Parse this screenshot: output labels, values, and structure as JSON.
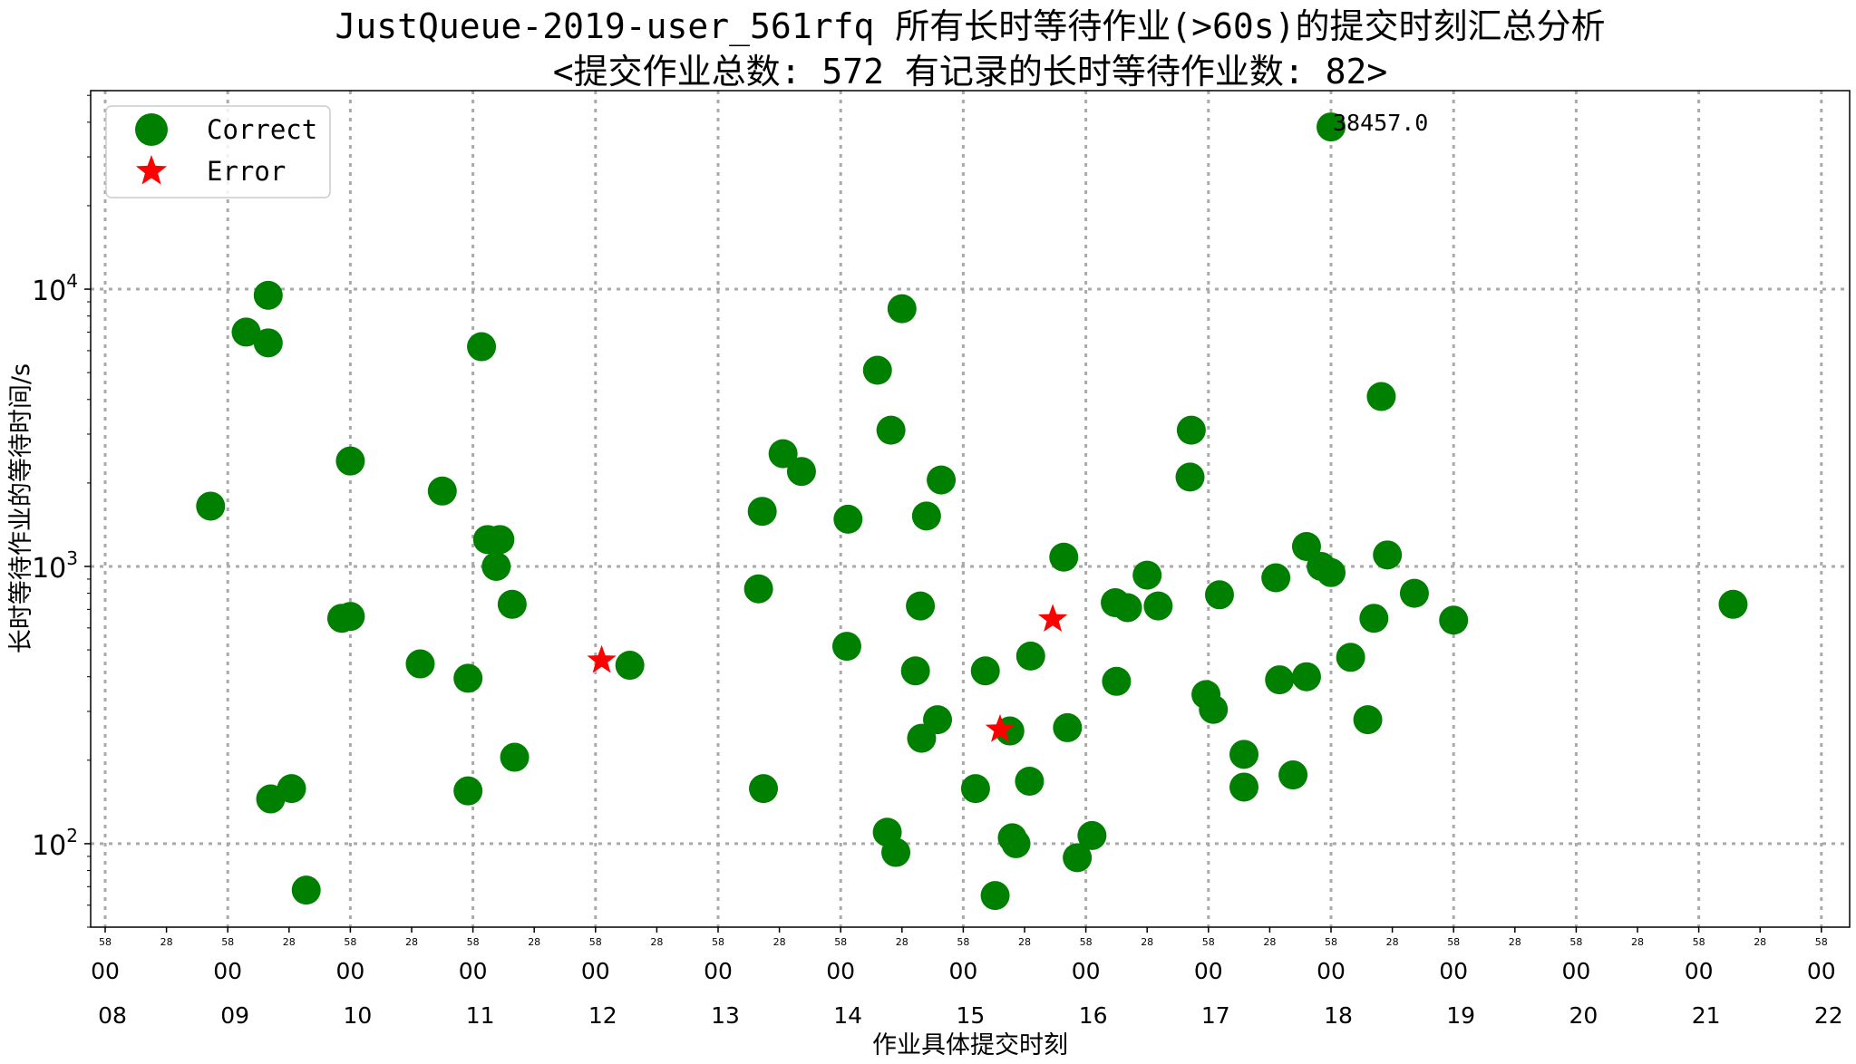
{
  "chart_data": {
    "type": "scatter",
    "title": "JustQueue-2019-user_561rfq 所有长时等待作业(>60s)的提交时刻汇总分析",
    "subtitle": "<提交作业总数: 572  有记录的长时等待作业数: 82>",
    "xlabel": "作业具体提交时刻",
    "ylabel": "长时等待作业的等待时间/s",
    "y_scale": "log",
    "ylim": [
      50,
      52000
    ],
    "xlim_hours": [
      7.97,
      22.3
    ],
    "grid": true,
    "legend_position": "top-left",
    "y_ticks": [
      {
        "value": 100,
        "base": "10",
        "exp": "2"
      },
      {
        "value": 1000,
        "base": "10",
        "exp": "3"
      },
      {
        "value": 10000,
        "base": "10",
        "exp": "4"
      }
    ],
    "x_ticks_major": [
      {
        "hour": "08",
        "value": 8.0
      },
      {
        "hour": "09",
        "value": 9.0
      },
      {
        "hour": "10",
        "value": 10.0
      },
      {
        "hour": "11",
        "value": 11.0
      },
      {
        "hour": "12",
        "value": 12.0
      },
      {
        "hour": "13",
        "value": 13.0
      },
      {
        "hour": "14",
        "value": 14.0
      },
      {
        "hour": "15",
        "value": 15.0
      },
      {
        "hour": "16",
        "value": 16.0
      },
      {
        "hour": "17",
        "value": 17.0
      },
      {
        "hour": "18",
        "value": 18.0
      },
      {
        "hour": "19",
        "value": 19.0
      },
      {
        "hour": "20",
        "value": 20.0
      },
      {
        "hour": "21",
        "value": 21.0
      },
      {
        "hour": "22",
        "value": 22.0
      }
    ],
    "x_tick_mid_label": "00",
    "x_tick_small_a": "58",
    "x_tick_small_b": "28",
    "series": [
      {
        "name": "Correct",
        "marker": "circle",
        "color": "#008000",
        "points": [
          [
            8.86,
            1650
          ],
          [
            9.15,
            7000
          ],
          [
            9.33,
            9500
          ],
          [
            9.33,
            6400
          ],
          [
            9.35,
            145
          ],
          [
            9.52,
            158
          ],
          [
            9.64,
            68
          ],
          [
            9.93,
            650
          ],
          [
            10.0,
            660
          ],
          [
            10.0,
            2400
          ],
          [
            10.57,
            445
          ],
          [
            10.75,
            1870
          ],
          [
            10.96,
            395
          ],
          [
            10.96,
            155
          ],
          [
            11.07,
            6200
          ],
          [
            11.12,
            1250
          ],
          [
            11.19,
            1000
          ],
          [
            11.22,
            1250
          ],
          [
            11.32,
            730
          ],
          [
            11.34,
            205
          ],
          [
            12.28,
            440
          ],
          [
            13.33,
            830
          ],
          [
            13.36,
            1580
          ],
          [
            13.37,
            158
          ],
          [
            13.53,
            2550
          ],
          [
            13.68,
            2200
          ],
          [
            14.05,
            515
          ],
          [
            14.06,
            1480
          ],
          [
            14.3,
            5100
          ],
          [
            14.38,
            110
          ],
          [
            14.41,
            3100
          ],
          [
            14.45,
            93
          ],
          [
            14.5,
            8500
          ],
          [
            14.61,
            420
          ],
          [
            14.65,
            720
          ],
          [
            14.66,
            240
          ],
          [
            14.7,
            1520
          ],
          [
            14.79,
            280
          ],
          [
            14.82,
            2050
          ],
          [
            15.1,
            158
          ],
          [
            15.18,
            420
          ],
          [
            15.26,
            65
          ],
          [
            15.38,
            255
          ],
          [
            15.4,
            105
          ],
          [
            15.43,
            100
          ],
          [
            15.54,
            168
          ],
          [
            15.55,
            475
          ],
          [
            15.82,
            1080
          ],
          [
            15.85,
            262
          ],
          [
            15.93,
            89
          ],
          [
            16.05,
            107
          ],
          [
            16.24,
            740
          ],
          [
            16.25,
            385
          ],
          [
            16.34,
            710
          ],
          [
            16.5,
            930
          ],
          [
            16.59,
            720
          ],
          [
            16.85,
            2100
          ],
          [
            16.86,
            3100
          ],
          [
            16.98,
            345
          ],
          [
            17.04,
            305
          ],
          [
            17.09,
            790
          ],
          [
            17.29,
            210
          ],
          [
            17.29,
            160
          ],
          [
            17.55,
            910
          ],
          [
            17.58,
            390
          ],
          [
            17.69,
            177
          ],
          [
            17.8,
            400
          ],
          [
            17.8,
            1180
          ],
          [
            17.92,
            1000
          ],
          [
            18.0,
            950
          ],
          [
            18.0,
            38457
          ],
          [
            18.16,
            470
          ],
          [
            18.3,
            280
          ],
          [
            18.35,
            650
          ],
          [
            18.41,
            4100
          ],
          [
            18.46,
            1100
          ],
          [
            18.68,
            800
          ],
          [
            19.0,
            640
          ],
          [
            21.28,
            730
          ]
        ]
      },
      {
        "name": "Error",
        "marker": "star",
        "color": "#ff0000",
        "points": [
          [
            12.05,
            458
          ],
          [
            15.3,
            258
          ],
          [
            15.73,
            645
          ]
        ]
      }
    ],
    "annotations": [
      {
        "text": "38457.0",
        "x": 18.0,
        "y": 38457
      }
    ]
  }
}
